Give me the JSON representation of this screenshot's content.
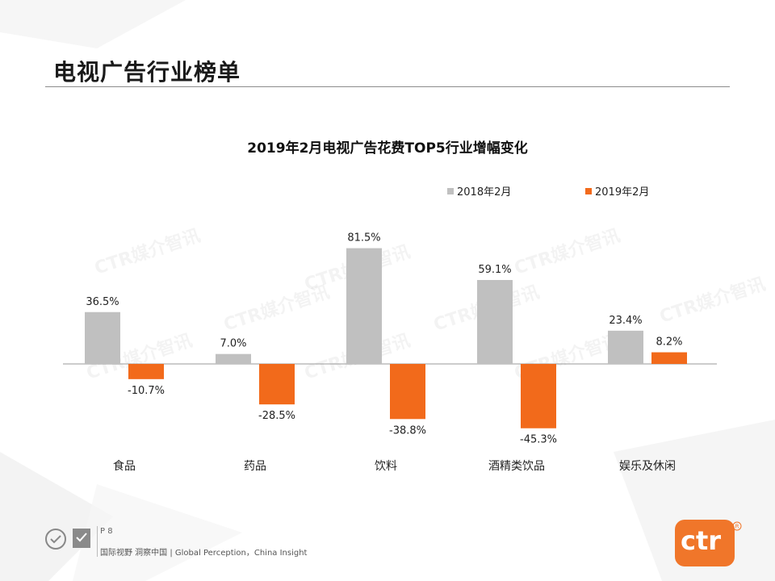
{
  "page": {
    "title": "电视广告行业榜单",
    "page_number": "P 8",
    "footer_text": "国际视野 洞察中国 | Global Perception，China Insight",
    "brand": "ctr",
    "watermark": "CTR媒介智讯"
  },
  "colors": {
    "series_2018": "#c0c0c0",
    "series_2019": "#f26a1b",
    "brand_orange": "#f0762a",
    "axis": "#999999"
  },
  "chart_data": {
    "type": "bar",
    "title": "2019年2月电视广告花费TOP5行业增幅变化",
    "categories": [
      "食品",
      "药品",
      "饮料",
      "酒精类饮品",
      "娱乐及休闲"
    ],
    "series": [
      {
        "name": "2018年2月",
        "values": [
          36.5,
          7.0,
          81.5,
          59.1,
          23.4
        ],
        "labels": [
          "36.5%",
          "7.0%",
          "81.5%",
          "59.1%",
          "23.4%"
        ]
      },
      {
        "name": "2019年2月",
        "values": [
          -10.7,
          -28.5,
          -38.8,
          -45.3,
          8.2
        ],
        "labels": [
          "-10.7%",
          "-28.5%",
          "-38.8%",
          "-45.3%",
          "8.2%"
        ]
      }
    ],
    "unit": "%",
    "legend_position": "top-right",
    "grid": false
  }
}
